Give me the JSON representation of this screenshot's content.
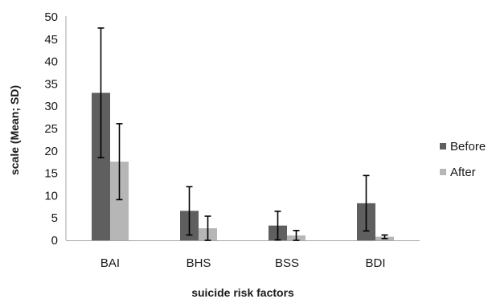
{
  "chart_data": {
    "type": "bar",
    "categories": [
      "BAI",
      "BHS",
      "BSS",
      "BDI"
    ],
    "series": [
      {
        "name": "Before",
        "color": "#5f5f5f",
        "values": [
          33.0,
          6.6,
          3.3,
          8.3
        ],
        "error": [
          14.5,
          5.4,
          3.2,
          6.2
        ]
      },
      {
        "name": "After",
        "color": "#b6b6b6",
        "values": [
          17.6,
          2.7,
          1.1,
          0.8
        ],
        "error": [
          8.5,
          2.7,
          1.1,
          0.4
        ]
      }
    ],
    "title": "",
    "xlabel": "suicide risk factors",
    "ylabel": "scale (Mean; SD)",
    "ylim": [
      0,
      50
    ],
    "yticks": [
      "0",
      "5",
      "10",
      "15",
      "20",
      "25",
      "30",
      "35",
      "40",
      "45",
      "50"
    ],
    "grid": false,
    "legend_position": "right",
    "error_bars": true
  }
}
